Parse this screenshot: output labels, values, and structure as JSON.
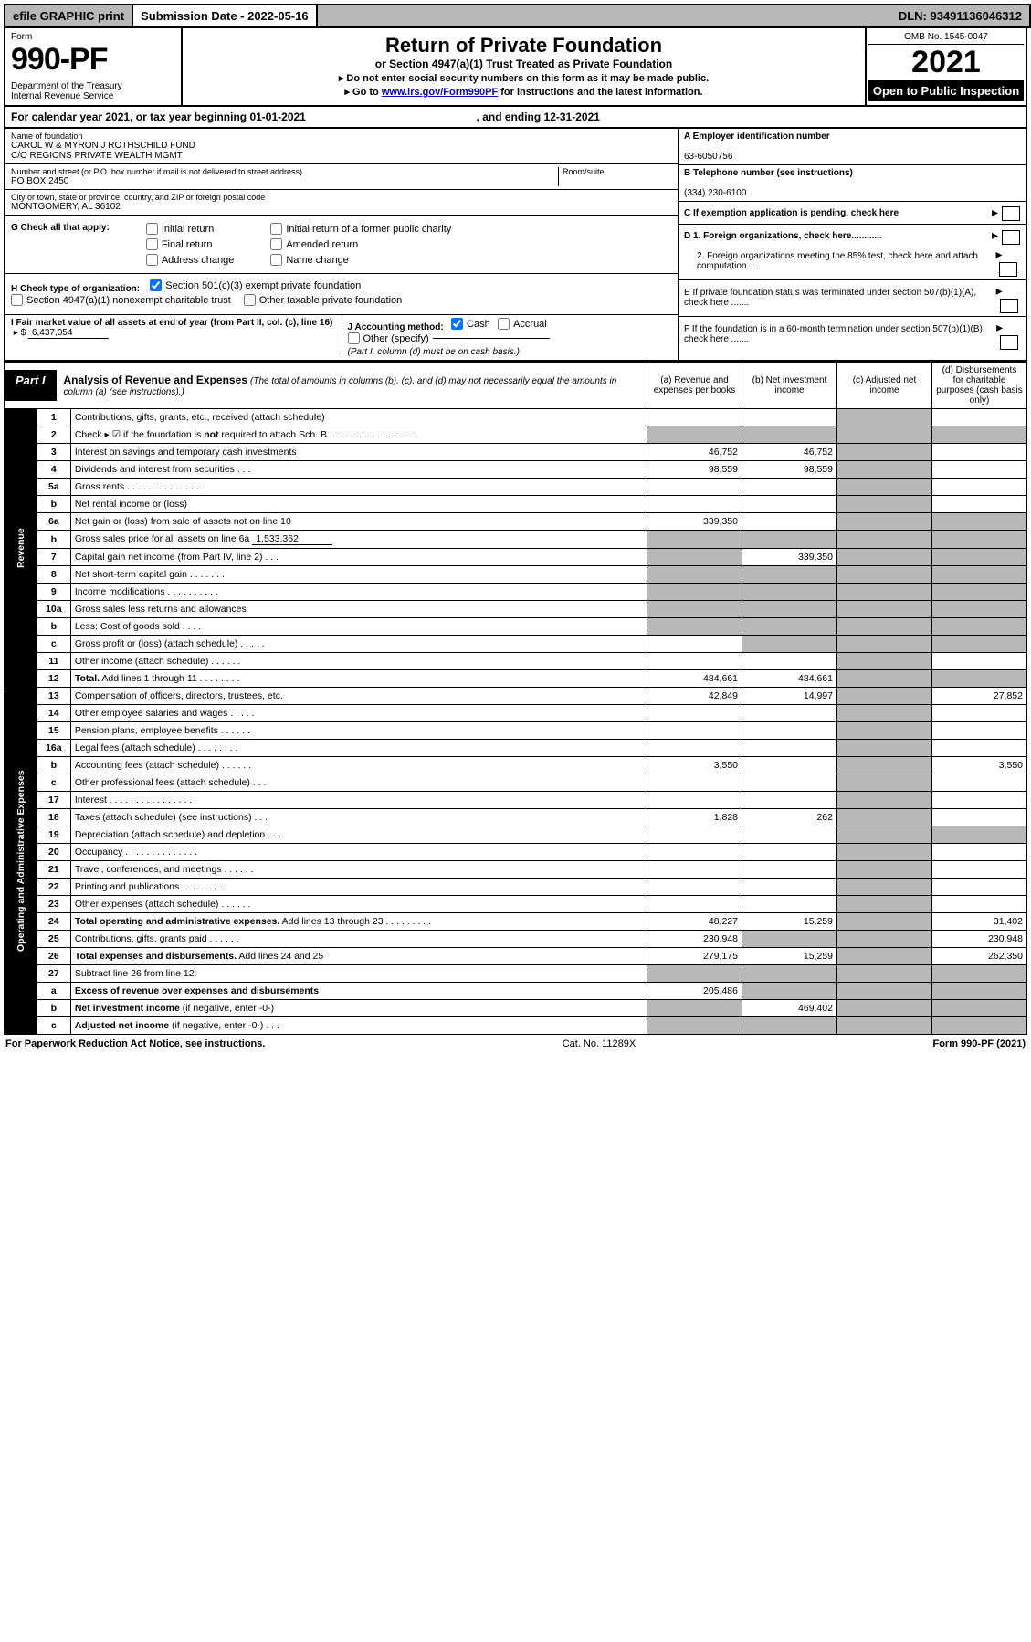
{
  "topbar": {
    "efile": "efile GRAPHIC print",
    "submission": "Submission Date - 2022-05-16",
    "dln": "DLN: 93491136046312"
  },
  "header": {
    "form_word": "Form",
    "form_num": "990-PF",
    "dept": "Department of the Treasury\nInternal Revenue Service",
    "title": "Return of Private Foundation",
    "subtitle": "or Section 4947(a)(1) Trust Treated as Private Foundation",
    "instr1": "▸ Do not enter social security numbers on this form as it may be made public.",
    "instr2_pre": "▸ Go to ",
    "instr2_link": "www.irs.gov/Form990PF",
    "instr2_post": " for instructions and the latest information.",
    "omb": "OMB No. 1545-0047",
    "year": "2021",
    "openpub": "Open to Public Inspection"
  },
  "calyear": {
    "text_a": "For calendar year 2021, or tax year beginning ",
    "begin": "01-01-2021",
    "text_b": " , and ending ",
    "end": "12-31-2021"
  },
  "foundation": {
    "name_label": "Name of foundation",
    "name": "CAROL W & MYRON J ROTHSCHILD FUND\nC/O REGIONS PRIVATE WEALTH MGMT",
    "addr_label": "Number and street (or P.O. box number if mail is not delivered to street address)",
    "addr": "PO BOX 2450",
    "room_label": "Room/suite",
    "city_label": "City or town, state or province, country, and ZIP or foreign postal code",
    "city": "MONTGOMERY, AL  36102",
    "ein_label": "A Employer identification number",
    "ein": "63-6050756",
    "tel_label": "B Telephone number (see instructions)",
    "tel": "(334) 230-6100",
    "c_label": "C If exemption application is pending, check here",
    "d1": "D 1. Foreign organizations, check here............",
    "d2": "2. Foreign organizations meeting the 85% test, check here and attach computation ...",
    "e": "E  If private foundation status was terminated under section 507(b)(1)(A), check here .......",
    "f": "F  If the foundation is in a 60-month termination under section 507(b)(1)(B), check here .......",
    "g_label": "G Check all that apply:",
    "g_opts": [
      "Initial return",
      "Final return",
      "Address change",
      "Initial return of a former public charity",
      "Amended return",
      "Name change"
    ],
    "h_label": "H Check type of organization:",
    "h_opts": [
      "Section 501(c)(3) exempt private foundation",
      "Section 4947(a)(1) nonexempt charitable trust",
      "Other taxable private foundation"
    ],
    "h_checked": "Section 501(c)(3) exempt private foundation",
    "i_label": "I Fair market value of all assets at end of year (from Part II, col. (c), line 16)",
    "i_value": "6,437,054",
    "j_label": "J Accounting method:",
    "j_opts": [
      "Cash",
      "Accrual",
      "Other (specify)"
    ],
    "j_checked": "Cash",
    "j_note": "(Part I, column (d) must be on cash basis.)"
  },
  "part1": {
    "label": "Part I",
    "title": "Analysis of Revenue and Expenses",
    "subtitle": "(The total of amounts in columns (b), (c), and (d) may not necessarily equal the amounts in column (a) (see instructions).)",
    "col_a": "(a) Revenue and expenses per books",
    "col_b": "(b) Net investment income",
    "col_c": "(c) Adjusted net income",
    "col_d": "(d) Disbursements for charitable purposes (cash basis only)",
    "rev_label": "Revenue",
    "exp_label": "Operating and Administrative Expenses",
    "rows": [
      {
        "n": "1",
        "lbl": "Contributions, gifts, grants, etc., received (attach schedule)",
        "a": "",
        "shade_bcd": false
      },
      {
        "n": "2",
        "lbl_html": "Check ▸ ☑ if the foundation is <b>not</b> required to attach Sch. B . . . . . . . . . . . . . . . . .",
        "a": "",
        "allshade": true
      },
      {
        "n": "3",
        "lbl": "Interest on savings and temporary cash investments",
        "a": "46,752",
        "b": "46,752"
      },
      {
        "n": "4",
        "lbl": "Dividends and interest from securities   .  .  .",
        "a": "98,559",
        "b": "98,559"
      },
      {
        "n": "5a",
        "lbl": "Gross rents   .  .  .  .  .  .  .  .  .  .  .  .  .  ."
      },
      {
        "n": "b",
        "lbl": "Net rental income or (loss)",
        "inset": true
      },
      {
        "n": "6a",
        "lbl": "Net gain or (loss) from sale of assets not on line 10",
        "a": "339,350",
        "shade_d": true
      },
      {
        "n": "b",
        "lbl_html": "Gross sales price for all assets on line 6a <span class='underline-val'>1,533,362</span>",
        "inset": true,
        "allshade": true
      },
      {
        "n": "7",
        "lbl": "Capital gain net income (from Part IV, line 2)   .  .  .",
        "b": "339,350",
        "shade_a": true,
        "shade_d": true
      },
      {
        "n": "8",
        "lbl": "Net short-term capital gain   .  .  .  .  .  .  .",
        "shade_ab": true,
        "shade_d": true
      },
      {
        "n": "9",
        "lbl": "Income modifications  .  .  .  .  .  .  .  .  .  .",
        "shade_ab": true,
        "shade_d": true
      },
      {
        "n": "10a",
        "lbl": "Gross sales less returns and allowances",
        "inset": true,
        "allshade": true
      },
      {
        "n": "b",
        "lbl": "Less: Cost of goods sold    .  .  .  .",
        "inset": true,
        "allshade": true
      },
      {
        "n": "c",
        "lbl": "Gross profit or (loss) (attach schedule)    .  .  .  .  .",
        "shade_b": true,
        "shade_d": true
      },
      {
        "n": "11",
        "lbl": "Other income (attach schedule)   .  .  .  .  .  ."
      },
      {
        "n": "12",
        "lbl": "<b>Total.</b> Add lines 1 through 11  .  .  .  .  .  .  .  .",
        "a": "484,661",
        "b": "484,661",
        "shade_d": true
      },
      {
        "n": "13",
        "lbl": "Compensation of officers, directors, trustees, etc.",
        "a": "42,849",
        "b": "14,997",
        "d": "27,852"
      },
      {
        "n": "14",
        "lbl": "Other employee salaries and wages   .  .  .  .  ."
      },
      {
        "n": "15",
        "lbl": "Pension plans, employee benefits  .  .  .  .  .  ."
      },
      {
        "n": "16a",
        "lbl": "Legal fees (attach schedule)  .  .  .  .  .  .  .  ."
      },
      {
        "n": "b",
        "lbl": "Accounting fees (attach schedule)  .  .  .  .  .  .",
        "a": "3,550",
        "d": "3,550"
      },
      {
        "n": "c",
        "lbl": "Other professional fees (attach schedule)   .  .  ."
      },
      {
        "n": "17",
        "lbl": "Interest  .  .  .  .  .  .  .  .  .  .  .  .  .  .  .  ."
      },
      {
        "n": "18",
        "lbl": "Taxes (attach schedule) (see instructions)    .  .  .",
        "a": "1,828",
        "b": "262"
      },
      {
        "n": "19",
        "lbl": "Depreciation (attach schedule) and depletion   .  .  .",
        "shade_d": true
      },
      {
        "n": "20",
        "lbl": "Occupancy  .  .  .  .  .  .  .  .  .  .  .  .  .  ."
      },
      {
        "n": "21",
        "lbl": "Travel, conferences, and meetings  .  .  .  .  .  ."
      },
      {
        "n": "22",
        "lbl": "Printing and publications  .  .  .  .  .  .  .  .  ."
      },
      {
        "n": "23",
        "lbl": "Other expenses (attach schedule)  .  .  .  .  .  ."
      },
      {
        "n": "24",
        "lbl": "<b>Total operating and administrative expenses.</b> Add lines 13 through 23  .  .  .  .  .  .  .  .  .",
        "a": "48,227",
        "b": "15,259",
        "d": "31,402"
      },
      {
        "n": "25",
        "lbl": "Contributions, gifts, grants paid    .  .  .  .  .  .",
        "a": "230,948",
        "d": "230,948",
        "shade_b": true
      },
      {
        "n": "26",
        "lbl": "<b>Total expenses and disbursements.</b> Add lines 24 and 25",
        "a": "279,175",
        "b": "15,259",
        "d": "262,350"
      },
      {
        "n": "27",
        "lbl": "Subtract line 26 from line 12:",
        "allshade": true
      },
      {
        "n": "a",
        "lbl": "<b>Excess of revenue over expenses and disbursements</b>",
        "a": "205,486",
        "shade_bcd": true
      },
      {
        "n": "b",
        "lbl": "<b>Net investment income</b> (if negative, enter -0-)",
        "b": "469,402",
        "shade_a": true,
        "shade_cd": true
      },
      {
        "n": "c",
        "lbl": "<b>Adjusted net income</b> (if negative, enter -0-)   .  .  .",
        "shade_ab": true,
        "shade_d": true
      }
    ]
  },
  "footer": {
    "left": "For Paperwork Reduction Act Notice, see instructions.",
    "mid": "Cat. No. 11289X",
    "right": "Form 990-PF (2021)"
  },
  "colors": {
    "shade": "#b8b8b8",
    "link": "#0000cc"
  }
}
